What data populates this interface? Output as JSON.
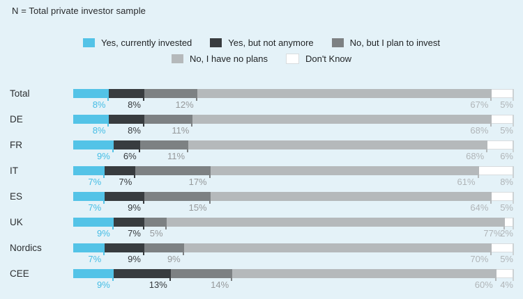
{
  "page": {
    "background": "#e4f2f8",
    "note": "N = Total private investor sample"
  },
  "chart_data": {
    "type": "bar",
    "variant": "horizontal-stacked-100",
    "value_suffix": "%",
    "title": "",
    "xlabel": "",
    "ylabel": "",
    "xlim": [
      0,
      100
    ],
    "legend_position": "top",
    "categories": [
      "Total",
      "DE",
      "FR",
      "IT",
      "ES",
      "UK",
      "Nordics",
      "CEE"
    ],
    "series": [
      {
        "name": "Yes, currently invested",
        "color": "#53c3e7",
        "label_color": "#45bde5",
        "values": [
          8,
          8,
          9,
          7,
          7,
          9,
          7,
          9
        ]
      },
      {
        "name": "Yes, but not anymore",
        "color": "#383c3f",
        "label_color": "#35393c",
        "values": [
          8,
          8,
          6,
          7,
          9,
          7,
          9,
          13
        ]
      },
      {
        "name": "No, but I plan to invest",
        "color": "#7d8183",
        "label_color": "#95989a",
        "values": [
          12,
          11,
          11,
          17,
          15,
          5,
          9,
          14
        ]
      },
      {
        "name": "No, I have no plans",
        "color": "#b5b9bb",
        "label_color": "#b0b5b8",
        "values": [
          67,
          68,
          68,
          61,
          64,
          77,
          70,
          60
        ]
      },
      {
        "name": "Don't Know",
        "color": "#ffffff",
        "border": "#d8dcde",
        "label_color": "#b0b5b8",
        "values": [
          5,
          5,
          6,
          8,
          5,
          2,
          5,
          4
        ]
      }
    ],
    "legend_rows": [
      [
        0,
        1,
        2
      ],
      [
        3,
        4
      ]
    ],
    "tick_end_color": "#ccd2d4"
  }
}
